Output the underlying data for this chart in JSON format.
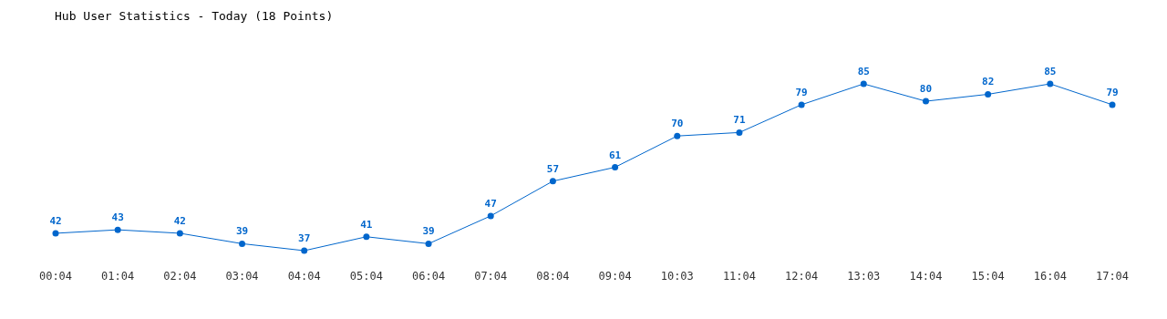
{
  "chart_data": {
    "type": "line",
    "title": "Hub User Statistics - Today (18 Points)",
    "categories": [
      "00:04",
      "01:04",
      "02:04",
      "03:04",
      "04:04",
      "05:04",
      "06:04",
      "07:04",
      "08:04",
      "09:04",
      "10:03",
      "11:04",
      "12:04",
      "13:03",
      "14:04",
      "15:04",
      "16:04",
      "17:04"
    ],
    "series": [
      {
        "color": "#0066cc",
        "values": [
          42,
          43,
          42,
          39,
          37,
          41,
          39,
          47,
          57,
          61,
          70,
          71,
          79,
          85,
          80,
          82,
          85,
          79
        ]
      }
    ],
    "data_labels": true,
    "marker": "circle",
    "line_style": "solid",
    "tick_labels": "x"
  }
}
